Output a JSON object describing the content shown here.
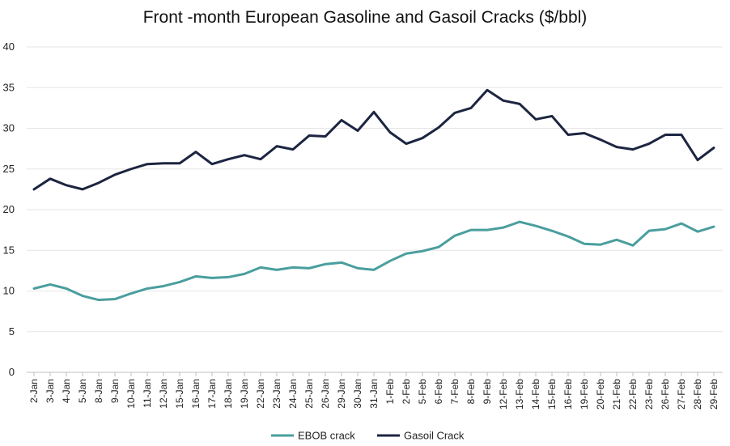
{
  "chart_data": {
    "type": "line",
    "title": "Front -month European Gasoline and Gasoil Cracks ($/bbl)",
    "xlabel": "",
    "ylabel": "",
    "ylim": [
      0,
      40
    ],
    "yticks": [
      0,
      5,
      10,
      15,
      20,
      25,
      30,
      35,
      40
    ],
    "grid": "horizontal",
    "legend_position": "bottom-center",
    "categories": [
      "2-Jan",
      "3-Jan",
      "4-Jan",
      "5-Jan",
      "8-Jan",
      "9-Jan",
      "10-Jan",
      "11-Jan",
      "12-Jan",
      "15-Jan",
      "16-Jan",
      "17-Jan",
      "18-Jan",
      "19-Jan",
      "22-Jan",
      "23-Jan",
      "24-Jan",
      "25-Jan",
      "26-Jan",
      "29-Jan",
      "30-Jan",
      "31-Jan",
      "1-Feb",
      "2-Feb",
      "5-Feb",
      "6-Feb",
      "7-Feb",
      "8-Feb",
      "9-Feb",
      "12-Feb",
      "13-Feb",
      "14-Feb",
      "15-Feb",
      "16-Feb",
      "19-Feb",
      "20-Feb",
      "21-Feb",
      "22-Feb",
      "23-Feb",
      "26-Feb",
      "27-Feb",
      "28-Feb",
      "29-Feb"
    ],
    "series": [
      {
        "name": "EBOB crack",
        "color": "#4A9E9E",
        "values": [
          10.3,
          10.8,
          10.3,
          9.4,
          8.9,
          9.0,
          9.7,
          10.3,
          10.6,
          11.1,
          11.8,
          11.6,
          11.7,
          12.1,
          12.9,
          12.6,
          12.9,
          12.8,
          13.3,
          13.5,
          12.8,
          12.6,
          13.7,
          14.6,
          14.9,
          15.4,
          16.8,
          17.5,
          17.5,
          17.8,
          18.5,
          18.0,
          17.4,
          16.7,
          15.8,
          15.7,
          16.3,
          15.6,
          17.4,
          17.6,
          18.3,
          17.3,
          17.9
        ]
      },
      {
        "name": "Gasoil Crack",
        "color": "#1C2541",
        "values": [
          22.5,
          23.8,
          23.0,
          22.5,
          23.3,
          24.3,
          25.0,
          25.6,
          25.7,
          25.7,
          27.1,
          25.6,
          26.2,
          26.7,
          26.2,
          27.8,
          27.4,
          29.1,
          29.0,
          31.0,
          29.7,
          32.0,
          29.5,
          28.1,
          28.8,
          30.1,
          31.9,
          32.5,
          34.7,
          33.4,
          33.0,
          31.1,
          31.5,
          29.2,
          29.4,
          28.6,
          27.7,
          27.4,
          28.1,
          29.2,
          29.2,
          26.1,
          27.6
        ]
      }
    ]
  }
}
